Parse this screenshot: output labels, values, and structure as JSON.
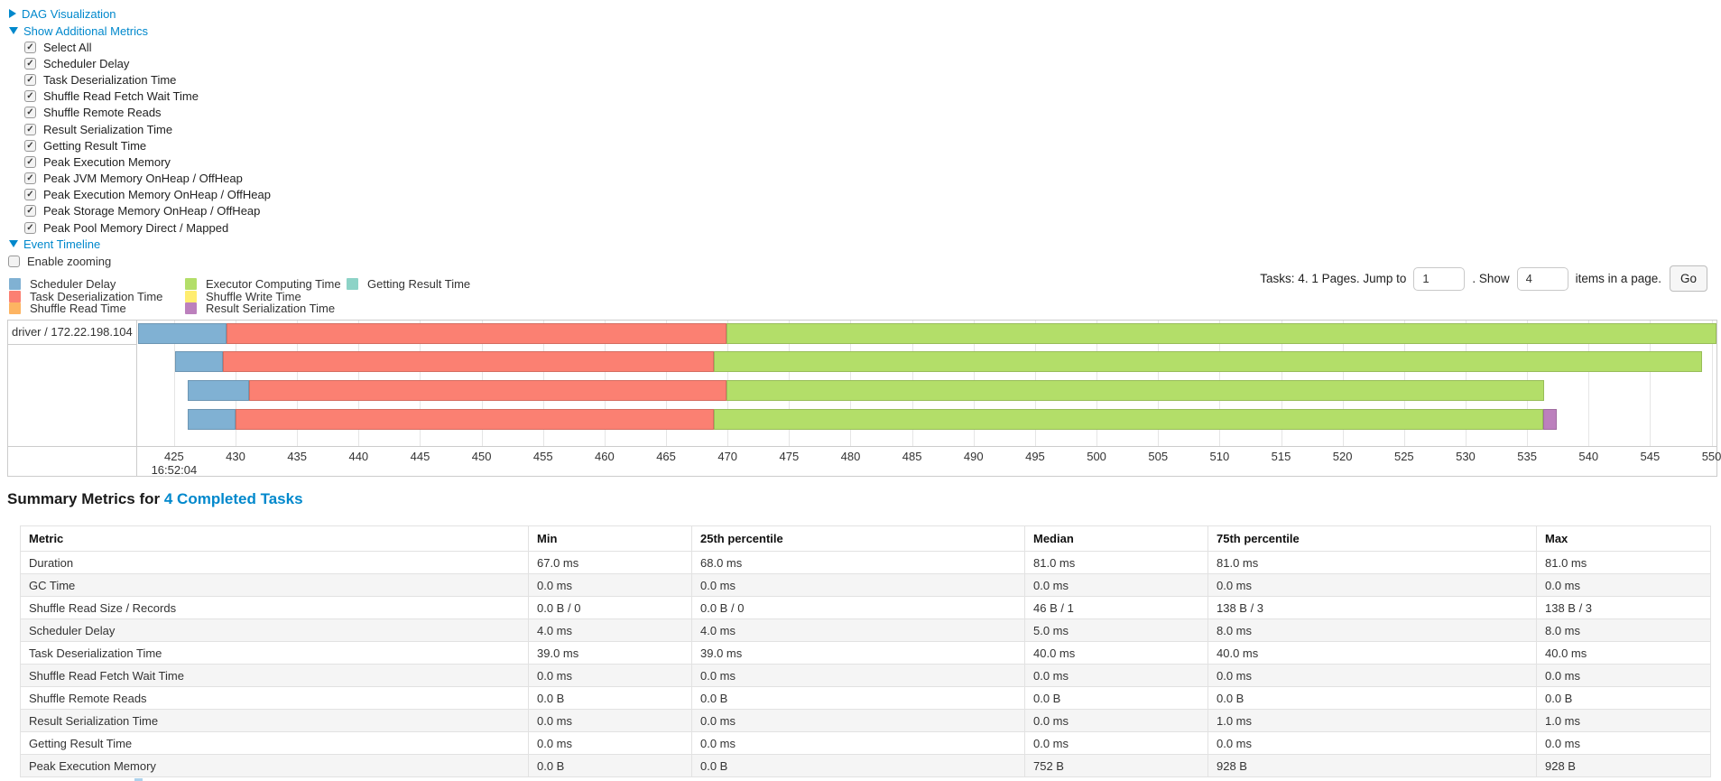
{
  "colors": {
    "scheduler-delay": "#80B1D3",
    "task-deserialization": "#FB8072",
    "shuffle-read": "#FDB462",
    "executor-computing": "#B3DE69",
    "shuffle-write": "#FFED6F",
    "result-serialization": "#BC80BD",
    "getting-result": "#8DD3C7",
    "link": "#0088cc"
  },
  "controls": {
    "dag": {
      "label": "DAG Visualization"
    },
    "metrics_toggle": {
      "label": "Show Additional Metrics"
    },
    "metric_checkboxes": [
      {
        "label": "Select All",
        "checked": true
      },
      {
        "label": "Scheduler Delay",
        "checked": true
      },
      {
        "label": "Task Deserialization Time",
        "checked": true
      },
      {
        "label": "Shuffle Read Fetch Wait Time",
        "checked": true
      },
      {
        "label": "Shuffle Remote Reads",
        "checked": true
      },
      {
        "label": "Result Serialization Time",
        "checked": true
      },
      {
        "label": "Getting Result Time",
        "checked": true
      },
      {
        "label": "Peak Execution Memory",
        "checked": true
      },
      {
        "label": "Peak JVM Memory OnHeap / OffHeap",
        "checked": true
      },
      {
        "label": "Peak Execution Memory OnHeap / OffHeap",
        "checked": true
      },
      {
        "label": "Peak Storage Memory OnHeap / OffHeap",
        "checked": true
      },
      {
        "label": "Peak Pool Memory Direct / Mapped",
        "checked": true
      }
    ],
    "event_timeline": {
      "label": "Event Timeline"
    },
    "enable_zooming": {
      "label": "Enable zooming",
      "checked": false
    }
  },
  "legend": {
    "columns": [
      [
        {
          "label": "Scheduler Delay",
          "color": "#80B1D3"
        },
        {
          "label": "Task Deserialization Time",
          "color": "#FB8072"
        },
        {
          "label": "Shuffle Read Time",
          "color": "#FDB462"
        }
      ],
      [
        {
          "label": "Executor Computing Time",
          "color": "#B3DE69"
        },
        {
          "label": "Shuffle Write Time",
          "color": "#FFED6F"
        },
        {
          "label": "Result Serialization Time",
          "color": "#BC80BD"
        }
      ],
      [
        {
          "label": "Getting Result Time",
          "color": "#8DD3C7"
        }
      ]
    ]
  },
  "pagination": {
    "tasks_info": "Tasks: 4. 1 Pages. Jump to",
    "jump_value": "1",
    "show_label": ". Show",
    "show_value": "4",
    "items_label": "items in a page.",
    "go_label": "Go"
  },
  "chart_data": {
    "type": "timeline",
    "executor_label": "driver / 172.22.198.104",
    "x_start": 422.0,
    "x_end": 550.4,
    "ticks": [
      425,
      430,
      435,
      440,
      445,
      450,
      455,
      460,
      465,
      470,
      475,
      480,
      485,
      490,
      495,
      500,
      505,
      510,
      515,
      520,
      525,
      530,
      535,
      540,
      545,
      550
    ],
    "tick_time_label": "16:52:04",
    "tasks": [
      {
        "segments": [
          {
            "type": "scheduler-delay",
            "start": 422.1,
            "end": 429.3
          },
          {
            "type": "task-deserialization",
            "start": 429.3,
            "end": 469.9
          },
          {
            "type": "executor-computing",
            "start": 469.9,
            "end": 550.4
          }
        ]
      },
      {
        "segments": [
          {
            "type": "scheduler-delay",
            "start": 425.1,
            "end": 429.0
          },
          {
            "type": "task-deserialization",
            "start": 429.0,
            "end": 468.9
          },
          {
            "type": "executor-computing",
            "start": 468.9,
            "end": 549.2
          }
        ]
      },
      {
        "segments": [
          {
            "type": "scheduler-delay",
            "start": 426.1,
            "end": 431.1
          },
          {
            "type": "task-deserialization",
            "start": 431.1,
            "end": 469.9
          },
          {
            "type": "executor-computing",
            "start": 469.9,
            "end": 536.4
          }
        ]
      },
      {
        "segments": [
          {
            "type": "scheduler-delay",
            "start": 426.1,
            "end": 430.0
          },
          {
            "type": "task-deserialization",
            "start": 430.0,
            "end": 468.9
          },
          {
            "type": "executor-computing",
            "start": 468.9,
            "end": 536.3
          },
          {
            "type": "result-serialization",
            "start": 536.3,
            "end": 537.4
          }
        ]
      }
    ]
  },
  "summary": {
    "title_prefix": "Summary Metrics for",
    "title_link": "4 Completed Tasks"
  },
  "table": {
    "headers": [
      "Metric",
      "Min",
      "25th percentile",
      "Median",
      "75th percentile",
      "Max"
    ],
    "rows": [
      {
        "metric": "Duration",
        "values": [
          "67.0 ms",
          "68.0 ms",
          "81.0 ms",
          "81.0 ms",
          "81.0 ms"
        ]
      },
      {
        "metric": "GC Time",
        "values": [
          "0.0 ms",
          "0.0 ms",
          "0.0 ms",
          "0.0 ms",
          "0.0 ms"
        ]
      },
      {
        "metric": "Shuffle Read Size / Records",
        "values": [
          "0.0 B / 0",
          "0.0 B / 0",
          "46 B / 1",
          "138 B / 3",
          "138 B / 3"
        ]
      },
      {
        "metric": "Scheduler Delay",
        "values": [
          "4.0 ms",
          "4.0 ms",
          "5.0 ms",
          "8.0 ms",
          "8.0 ms"
        ]
      },
      {
        "metric": "Task Deserialization Time",
        "values": [
          "39.0 ms",
          "39.0 ms",
          "40.0 ms",
          "40.0 ms",
          "40.0 ms"
        ]
      },
      {
        "metric": "Shuffle Read Fetch Wait Time",
        "values": [
          "0.0 ms",
          "0.0 ms",
          "0.0 ms",
          "0.0 ms",
          "0.0 ms"
        ]
      },
      {
        "metric": "Shuffle Remote Reads",
        "values": [
          "0.0 B",
          "0.0 B",
          "0.0 B",
          "0.0 B",
          "0.0 B"
        ]
      },
      {
        "metric": "Result Serialization Time",
        "values": [
          "0.0 ms",
          "0.0 ms",
          "0.0 ms",
          "1.0 ms",
          "1.0 ms"
        ]
      },
      {
        "metric": "Getting Result Time",
        "values": [
          "0.0 ms",
          "0.0 ms",
          "0.0 ms",
          "0.0 ms",
          "0.0 ms"
        ]
      },
      {
        "metric": "Peak Execution Memory",
        "values": [
          "0.0 B",
          "0.0 B",
          "752 B",
          "928 B",
          "928 B"
        ]
      }
    ]
  }
}
